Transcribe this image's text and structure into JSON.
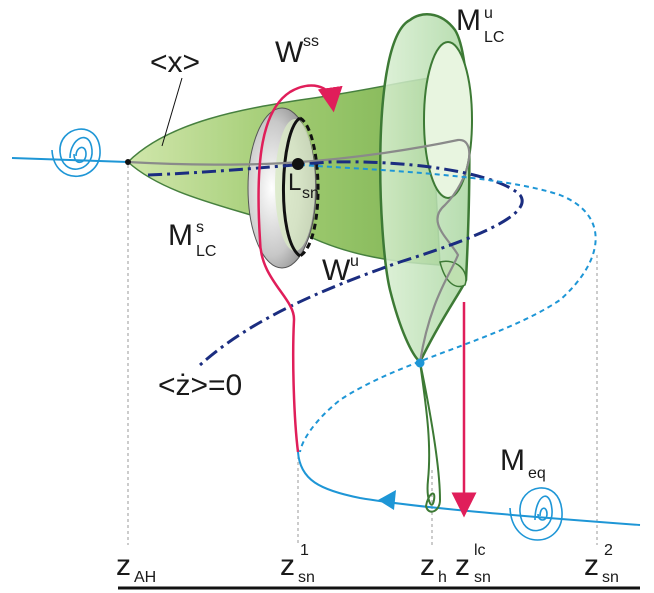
{
  "labels": {
    "x_avg": "<x>",
    "wss_main": "W",
    "wss_sup": "ss",
    "mlcu_main": "M",
    "mlcu_sup": "u",
    "mlcu_sub": "LC",
    "mlcs_main": "M",
    "mlcs_sup": "s",
    "mlcs_sub": "LC",
    "lsn_main": "L",
    "lsn_sub": "sn",
    "wu_main": "W",
    "wu_sup": "u",
    "zdot_eq": "<ż>=0",
    "meq_main": "M",
    "meq_sub": "eq"
  },
  "axis": {
    "zah_main": "z",
    "zah_sub": "AH",
    "zsn1_main": "z",
    "zsn1_sup": "1",
    "zsn1_sub": "sn",
    "zh_main": "z",
    "zh_sub": "h",
    "zsnlc_main": "z",
    "zsnlc_sup": "lc",
    "zsnlc_sub": "sn",
    "zsn2_main": "z",
    "zsn2_sup": "2",
    "zsn2_sub": "sn"
  },
  "colors": {
    "manifold_green": "#9cc96b",
    "manifold_edge": "#3d7a35",
    "cyan": "#1e96d6",
    "navy": "#1b2d80",
    "crimson": "#e01e5a",
    "gray": "#8a8a8a"
  }
}
